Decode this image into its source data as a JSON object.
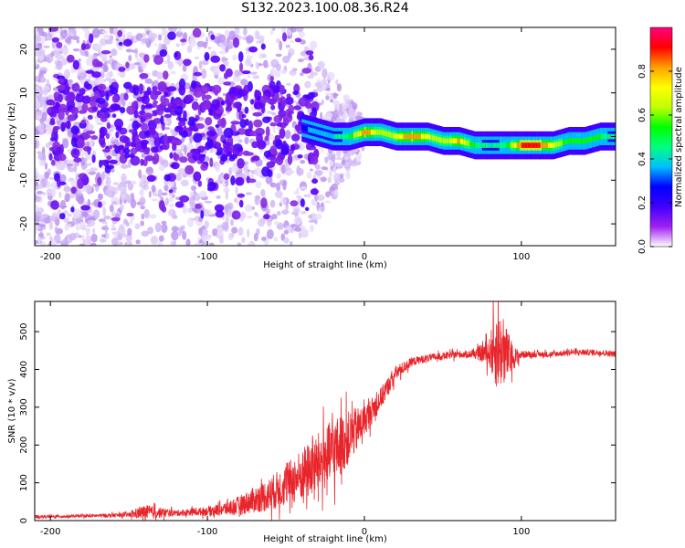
{
  "title": "S132.2023.100.08.36.R24",
  "chart_data": [
    {
      "type": "heatmap",
      "xlabel": "Height of straight line (km)",
      "ylabel": "Frequency (Hz)",
      "xlim": [
        -210,
        160
      ],
      "ylim": [
        -25,
        25
      ],
      "xticks": [
        -200,
        -100,
        0,
        100
      ],
      "yticks": [
        -20,
        -10,
        0,
        10,
        20
      ],
      "colorbar": {
        "label": "Normalized spectral amplitude",
        "range": [
          0,
          1
        ],
        "ticks": [
          "0.0",
          "0.2",
          "0.4",
          "0.6",
          "0.8"
        ],
        "colors": [
          "#ffffff",
          "#a020f0",
          "#4000ff",
          "#0000ff",
          "#00c0ff",
          "#00ff80",
          "#00ff00",
          "#c0ff00",
          "#ffff00",
          "#ffa000",
          "#ff0000",
          "#ff0080"
        ]
      },
      "ridge": {
        "x": [
          -40,
          -30,
          -20,
          -10,
          0,
          10,
          20,
          30,
          40,
          50,
          60,
          70,
          80,
          90,
          100,
          110,
          120,
          130,
          140,
          150,
          160
        ],
        "freq": [
          2,
          1,
          0,
          0,
          1,
          1,
          0,
          0,
          0,
          -1,
          -1,
          -2,
          -2,
          -2,
          -2,
          -2,
          -2,
          -1,
          -1,
          0,
          0
        ],
        "amplitude": [
          0.3,
          0.35,
          0.4,
          0.5,
          0.85,
          0.6,
          0.7,
          0.85,
          0.7,
          0.6,
          0.8,
          0.5,
          0.4,
          0.5,
          0.9,
          0.9,
          0.7,
          0.5,
          0.5,
          0.5,
          0.4
        ]
      }
    },
    {
      "type": "line",
      "xlabel": "Height of straight line (km)",
      "ylabel": "SNR (10 * v/v)",
      "xlim": [
        -210,
        160
      ],
      "ylim": [
        0,
        580
      ],
      "xticks": [
        -200,
        -100,
        0,
        100
      ],
      "yticks": [
        0,
        100,
        200,
        300,
        400,
        500
      ],
      "color": "#e8252b",
      "series": [
        {
          "x": [
            -210,
            -180,
            -150,
            -140,
            -120,
            -100,
            -90,
            -80,
            -70,
            -60,
            -50,
            -40,
            -30,
            -20,
            -15,
            -10,
            -5,
            0,
            10,
            20,
            30,
            40,
            50,
            60,
            70,
            80,
            82,
            85,
            90,
            95,
            100,
            110,
            120,
            130,
            140,
            150,
            160
          ],
          "y": [
            10,
            12,
            15,
            22,
            20,
            25,
            30,
            40,
            55,
            70,
            95,
            120,
            150,
            180,
            200,
            220,
            240,
            265,
            320,
            390,
            420,
            430,
            435,
            440,
            440,
            445,
            450,
            455,
            440,
            430,
            440,
            440,
            440,
            445,
            445,
            445,
            440
          ],
          "noise": [
            4,
            4,
            6,
            20,
            8,
            12,
            18,
            25,
            35,
            45,
            55,
            70,
            80,
            90,
            80,
            70,
            60,
            40,
            30,
            20,
            12,
            10,
            10,
            10,
            10,
            40,
            90,
            110,
            80,
            30,
            10,
            8,
            8,
            8,
            8,
            8,
            8
          ]
        }
      ]
    }
  ]
}
